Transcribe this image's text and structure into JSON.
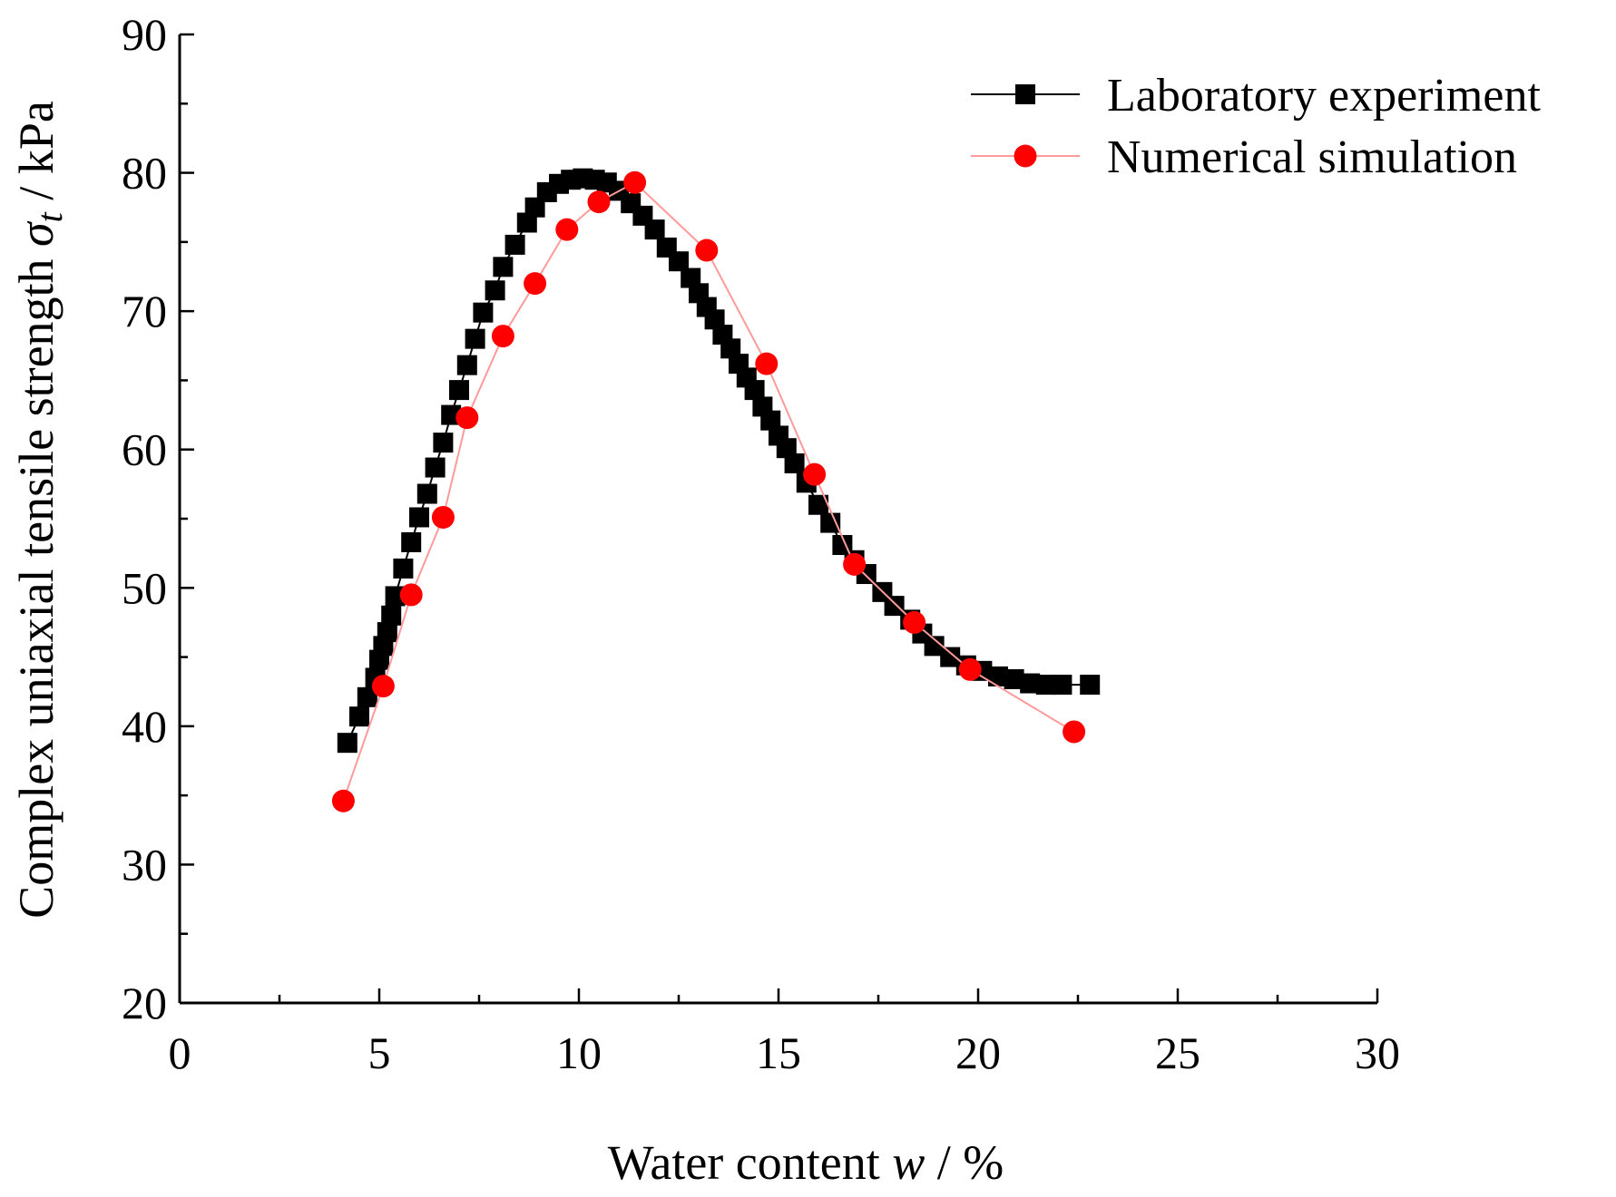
{
  "chart_data": {
    "type": "scatter",
    "title": "",
    "xlabel": {
      "prefix": "Water content ",
      "symbol": "w",
      "suffix": " / %"
    },
    "ylabel": {
      "prefix": "Complex uniaxial tensile strength ",
      "symbol": "σ",
      "subscript": "t",
      "suffix": " / kPa"
    },
    "xlim": [
      0,
      30
    ],
    "ylim": [
      20,
      90
    ],
    "xticks": [
      0,
      5,
      10,
      15,
      20,
      25,
      30
    ],
    "yticks": [
      20,
      30,
      40,
      50,
      60,
      70,
      80,
      90
    ],
    "xtick_labels": [
      "0",
      "5",
      "10",
      "15",
      "20",
      "25",
      "30"
    ],
    "ytick_labels": [
      "20",
      "30",
      "40",
      "50",
      "60",
      "70",
      "80",
      "90"
    ],
    "legend_position": "top-right",
    "series": [
      {
        "name": "Laboratory experiment",
        "marker": "square",
        "color": "#000000",
        "line_color": "#000000",
        "x": [
          4.2,
          4.5,
          4.7,
          4.9,
          5.0,
          5.1,
          5.2,
          5.3,
          5.4,
          5.6,
          5.8,
          6.0,
          6.2,
          6.4,
          6.6,
          6.8,
          7.0,
          7.2,
          7.4,
          7.6,
          7.9,
          8.1,
          8.4,
          8.7,
          8.9,
          9.2,
          9.5,
          9.8,
          10.1,
          10.4,
          10.7,
          11.0,
          11.3,
          11.6,
          11.9,
          12.2,
          12.5,
          12.8,
          13.0,
          13.2,
          13.4,
          13.6,
          13.8,
          14.0,
          14.2,
          14.4,
          14.6,
          14.8,
          15.0,
          15.2,
          15.4,
          15.7,
          16.0,
          16.3,
          16.6,
          16.9,
          17.2,
          17.6,
          17.9,
          18.3,
          18.6,
          18.9,
          19.3,
          19.7,
          20.1,
          20.5,
          20.9,
          21.3,
          21.7,
          22.1,
          22.8
        ],
        "y": [
          38.8,
          40.7,
          42.1,
          43.5,
          44.8,
          45.8,
          46.8,
          48.0,
          49.4,
          51.4,
          53.3,
          55.1,
          56.8,
          58.7,
          60.5,
          62.5,
          64.3,
          66.1,
          68.0,
          69.9,
          71.5,
          73.2,
          74.8,
          76.4,
          77.5,
          78.6,
          79.2,
          79.5,
          79.6,
          79.5,
          79.3,
          78.7,
          77.8,
          76.9,
          75.9,
          74.6,
          73.6,
          72.4,
          71.3,
          70.3,
          69.4,
          68.3,
          67.3,
          66.2,
          65.2,
          64.3,
          63.1,
          62.1,
          61.0,
          60.1,
          59.0,
          57.6,
          56.0,
          54.7,
          53.1,
          52.0,
          51.0,
          49.7,
          48.7,
          47.7,
          46.7,
          45.8,
          45.0,
          44.4,
          44.0,
          43.6,
          43.4,
          43.1,
          43.0,
          43.0,
          43.0
        ]
      },
      {
        "name": "Numerical simulation",
        "marker": "circle",
        "color": "#ff0000",
        "line_color": "#ff9a9a",
        "x": [
          4.1,
          5.1,
          5.8,
          6.6,
          7.2,
          8.1,
          8.9,
          9.7,
          10.5,
          11.4,
          13.2,
          14.7,
          15.9,
          16.9,
          18.4,
          19.8,
          22.4
        ],
        "y": [
          34.6,
          42.9,
          49.5,
          55.1,
          62.3,
          68.2,
          72.0,
          75.9,
          77.9,
          79.3,
          74.4,
          66.2,
          58.2,
          51.7,
          47.5,
          44.1,
          39.6
        ]
      }
    ]
  }
}
